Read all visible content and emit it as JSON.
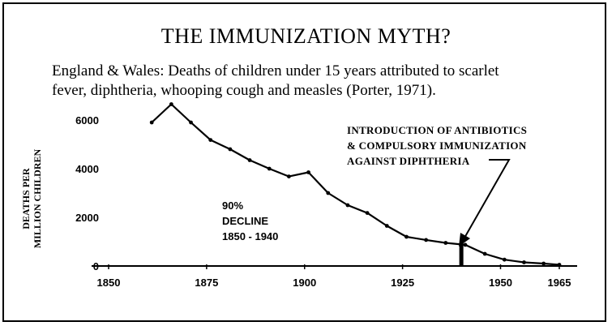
{
  "chart_data": {
    "type": "line",
    "title": "THE IMMUNIZATION MYTH?",
    "subtitle_lines": [
      "England & Wales: Deaths of children under 15 years attributed to scarlet",
      "fever, diphtheria, whooping cough and measles (Porter, 1971)."
    ],
    "ylabel_lines": [
      "DEATHS PER",
      "MILLION CHILDREN"
    ],
    "xlabel": "",
    "xlim": [
      1850,
      1965
    ],
    "ylim": [
      0,
      6600
    ],
    "x_ticks": [
      "1850",
      "1875",
      "1900",
      "1925",
      "1950",
      "1965"
    ],
    "y_ticks": [
      "0",
      "2000",
      "4000",
      "6000"
    ],
    "series": [
      {
        "x": [
          1861,
          1866,
          1871,
          1876,
          1881,
          1886,
          1891,
          1896,
          1901,
          1906,
          1911,
          1916,
          1921,
          1926,
          1931,
          1936,
          1941,
          1946,
          1951,
          1956,
          1961,
          1965
        ],
        "y": [
          5900,
          6650,
          5900,
          5180,
          4800,
          4350,
          4000,
          3680,
          3850,
          3000,
          2500,
          2180,
          1650,
          1200,
          1070,
          950,
          870,
          500,
          260,
          150,
          100,
          50
        ]
      }
    ],
    "annotations": {
      "decline": [
        "90%",
        "DECLINE",
        "1850 - 1940"
      ],
      "intro": [
        "INTRODUCTION OF ANTIBIOTICS",
        "& COMPULSORY IMMUNIZATION",
        "AGAINST DIPHTHERIA"
      ],
      "marker_year": 1940
    },
    "grid": false
  }
}
